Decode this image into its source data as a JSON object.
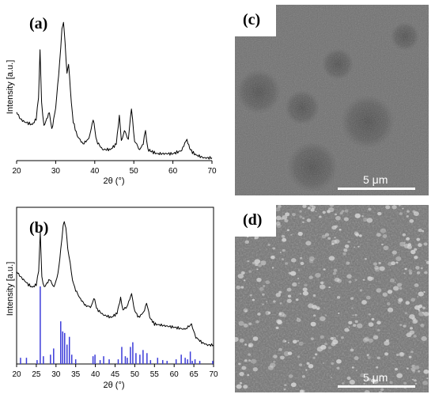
{
  "figure": {
    "panels": {
      "a": {
        "label": "(a)",
        "xlabel": "2θ (°)",
        "ylabel": "Intensity [a.u.]"
      },
      "b": {
        "label": "(b)",
        "xlabel": "2θ (°)",
        "ylabel": "Intensity [a.u.]"
      },
      "c": {
        "label": "(c)",
        "scale_label": "5 μm",
        "image": "SEM micrograph, surface with darker circular patches"
      },
      "d": {
        "label": "(d)",
        "scale_label": "5 μm",
        "image": "SEM micrograph, surface with small bright grains"
      }
    },
    "colors": {
      "pattern": "#000000",
      "reference_lines": "#3b3bd9",
      "sem_dark": "#4a4a4a",
      "sem_light": "#8a8a8a"
    }
  },
  "chart_data": [
    {
      "type": "line",
      "panel": "a",
      "xlabel": "2θ (°)",
      "ylabel": "Intensity [a.u.]",
      "xlim": [
        20,
        70
      ],
      "xticks": [
        20,
        30,
        40,
        50,
        60,
        70
      ],
      "grid": false,
      "x": [
        20,
        21,
        22,
        23,
        24,
        25,
        25.6,
        26.0,
        26.4,
        27,
        28.4,
        29,
        30,
        31,
        31.6,
        32.0,
        32.4,
        32.9,
        33.3,
        34.0,
        34.5,
        35.5,
        37,
        38.5,
        39.6,
        40.5,
        42,
        44,
        45.5,
        46.3,
        46.8,
        47.6,
        48.6,
        49.4,
        50.2,
        51.5,
        52.4,
        53.0,
        53.6,
        55,
        56,
        58,
        60,
        62,
        63.6,
        64.3,
        65,
        66,
        68,
        70
      ],
      "y": [
        0.35,
        0.3,
        0.28,
        0.27,
        0.26,
        0.3,
        0.45,
        0.8,
        0.42,
        0.25,
        0.35,
        0.22,
        0.38,
        0.7,
        0.95,
        1.0,
        0.85,
        0.62,
        0.7,
        0.42,
        0.28,
        0.18,
        0.12,
        0.16,
        0.3,
        0.14,
        0.08,
        0.08,
        0.12,
        0.33,
        0.14,
        0.22,
        0.15,
        0.38,
        0.14,
        0.08,
        0.12,
        0.22,
        0.08,
        0.06,
        0.05,
        0.05,
        0.05,
        0.07,
        0.15,
        0.09,
        0.06,
        0.04,
        0.02,
        0.02
      ]
    },
    {
      "type": "line",
      "panel": "b",
      "xlabel": "2θ (°)",
      "ylabel": "Intensity [a.u.]",
      "xlim": [
        20,
        70
      ],
      "xticks": [
        20,
        25,
        30,
        35,
        40,
        45,
        50,
        55,
        60,
        65,
        70
      ],
      "grid": false,
      "x": [
        20,
        21,
        22,
        23,
        24,
        25,
        25.6,
        26.0,
        26.4,
        27,
        28.4,
        29.5,
        30.5,
        31.2,
        31.8,
        32.1,
        32.5,
        33,
        33.6,
        34.2,
        35,
        36,
        37.5,
        39,
        39.6,
        40.5,
        42,
        44,
        45.5,
        46.4,
        47,
        48,
        49.2,
        50,
        51,
        52.2,
        53,
        53.8,
        55,
        57,
        59,
        61,
        62.5,
        63.8,
        64.4,
        65.5,
        67,
        68.5,
        70
      ],
      "y": [
        0.62,
        0.58,
        0.55,
        0.52,
        0.5,
        0.52,
        0.62,
        0.92,
        0.58,
        0.5,
        0.56,
        0.5,
        0.6,
        0.78,
        0.97,
        1.0,
        0.95,
        0.8,
        0.68,
        0.55,
        0.48,
        0.42,
        0.36,
        0.35,
        0.42,
        0.33,
        0.29,
        0.27,
        0.3,
        0.42,
        0.33,
        0.35,
        0.45,
        0.32,
        0.27,
        0.31,
        0.38,
        0.27,
        0.22,
        0.21,
        0.2,
        0.19,
        0.18,
        0.2,
        0.22,
        0.12,
        0.08,
        0.06,
        0.06
      ],
      "reference": {
        "x": [
          21.0,
          22.5,
          25.2,
          26.0,
          26.8,
          28.6,
          29.4,
          31.2,
          31.7,
          32.2,
          32.8,
          33.4,
          34.0,
          35.0,
          39.4,
          39.9,
          41.2,
          42.1,
          43.5,
          45.8,
          46.7,
          47.6,
          48.1,
          48.9,
          49.5,
          50.3,
          51.3,
          52.1,
          53.1,
          54.0,
          55.8,
          57.1,
          58.2,
          60.5,
          61.8,
          62.8,
          63.4,
          64.1,
          64.6,
          65.3,
          66.5,
          69.8
        ],
        "intensity": [
          0.08,
          0.08,
          0.05,
          1.0,
          0.1,
          0.12,
          0.2,
          0.55,
          0.42,
          0.4,
          0.25,
          0.35,
          0.12,
          0.06,
          0.1,
          0.12,
          0.05,
          0.1,
          0.06,
          0.06,
          0.22,
          0.1,
          0.08,
          0.22,
          0.28,
          0.14,
          0.12,
          0.18,
          0.14,
          0.05,
          0.08,
          0.05,
          0.04,
          0.06,
          0.12,
          0.08,
          0.06,
          0.16,
          0.04,
          0.06,
          0.04,
          0.04
        ]
      }
    }
  ]
}
